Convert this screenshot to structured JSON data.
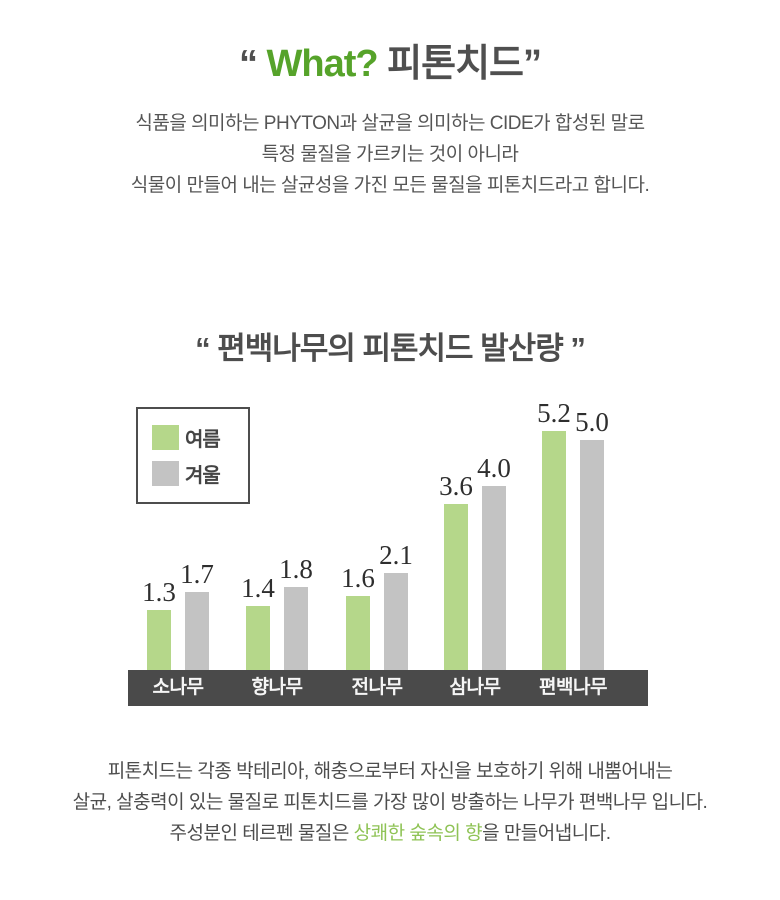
{
  "header": {
    "quote_open": "“ ",
    "title_en": "What?",
    "title_ko": " 피톤치드",
    "quote_close": "”",
    "intro_lines": [
      "식품을 의미하는 PHYTON과 살균을 의미하는 CIDE가 합성된 말로",
      "특정 물질을 가르키는 것이 아니라",
      "식물이 만들어 내는 살균성을 가진 모든 물질을 피톤치드라고 합니다."
    ]
  },
  "chart_data": {
    "type": "bar",
    "title": "“ 편백나무의 피톤치드 발산량 ”",
    "categories": [
      "소나무",
      "향나무",
      "전나무",
      "삼나무",
      "편백나무"
    ],
    "series": [
      {
        "name": "여름",
        "color": "#b5d78a",
        "values": [
          1.3,
          1.4,
          1.6,
          3.6,
          5.2
        ]
      },
      {
        "name": "겨울",
        "color": "#c3c3c3",
        "values": [
          1.7,
          1.8,
          2.1,
          4.0,
          5.0
        ]
      }
    ],
    "value_labels": true,
    "legend_position": "top-left",
    "ylim": [
      0,
      5.5
    ],
    "grid": false,
    "axis_band_color": "#4a4a4a",
    "xlabel": "",
    "ylabel": ""
  },
  "footer_text": {
    "line1": "피톤치드는 각종 박테리아, 해충으로부터 자신을 보호하기 위해 내뿜어내는",
    "line2": "살균, 살충력이 있는 물질로 피톤치드를 가장 많이 방출하는 나무가 편백나무 입니다.",
    "line3_pre": "주성분인 테르펜 물질은 ",
    "line3_highlight": "상쾌한 숲속의 향",
    "line3_post": "을 만들어냅니다."
  },
  "colors": {
    "accent_green": "#56a32a",
    "highlight_green": "#8fc356",
    "bar_green": "#b5d78a",
    "bar_gray": "#c3c3c3",
    "axis_band": "#4a4a4a",
    "body_text": "#555555"
  }
}
